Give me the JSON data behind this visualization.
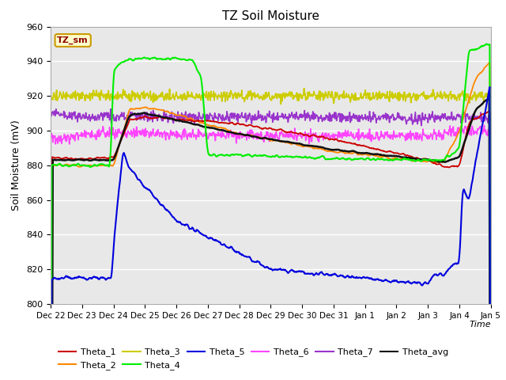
{
  "title": "TZ Soil Moisture",
  "ylabel": "Soil Moisture (mV)",
  "xlabel": "Time",
  "ylim": [
    800,
    960
  ],
  "bg_color": "#e8e8e8",
  "legend_box_label": "TZ_sm",
  "series_colors": {
    "Theta_1": "#cc0000",
    "Theta_2": "#ff8800",
    "Theta_3": "#cccc00",
    "Theta_4": "#00ee00",
    "Theta_5": "#0000dd",
    "Theta_6": "#ff44ff",
    "Theta_7": "#9933cc",
    "Theta_avg": "#111111"
  },
  "xtick_labels": [
    "Dec 22",
    "Dec 23",
    "Dec 24",
    "Dec 25",
    "Dec 26",
    "Dec 27",
    "Dec 28",
    "Dec 29",
    "Dec 30",
    "Dec 31",
    "Jan 1",
    "Jan 2",
    "Jan 3",
    "Jan 4",
    "Jan 5"
  ],
  "ytick_values": [
    800,
    820,
    840,
    860,
    880,
    900,
    920,
    940,
    960
  ]
}
